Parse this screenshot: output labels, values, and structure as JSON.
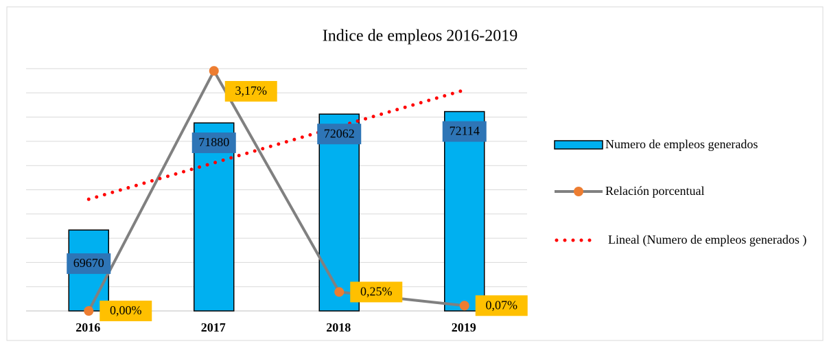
{
  "chart_data": {
    "type": "bar",
    "title": "Indice de empleos 2016-2019",
    "categories": [
      "2016",
      "2017",
      "2018",
      "2019"
    ],
    "series": [
      {
        "name": "Numero de empleos generados",
        "color": "#00b0f0",
        "values": [
          69670,
          71880,
          72062,
          72114
        ]
      },
      {
        "name": "Relación porcentual",
        "type": "line",
        "axis": "y2",
        "color": "#808080",
        "marker_color": "#ed7d31",
        "values": [
          0.0,
          3.17,
          0.25,
          0.07
        ],
        "value_labels": [
          "0,00%",
          "3,17%",
          "0,25%",
          "0,07%"
        ]
      }
    ],
    "trendline": {
      "name": "Lineal (Numero de empleos generados )",
      "type": "linear",
      "of_series": 0,
      "color": "#ff0000"
    },
    "ylim": [
      68000,
      73000
    ],
    "yticks": [
      68000,
      68500,
      69000,
      69500,
      70000,
      70500,
      71000,
      71500,
      72000,
      72500,
      73000
    ],
    "y2lim": [
      0,
      3.2
    ],
    "grid": true,
    "legend": "right"
  }
}
